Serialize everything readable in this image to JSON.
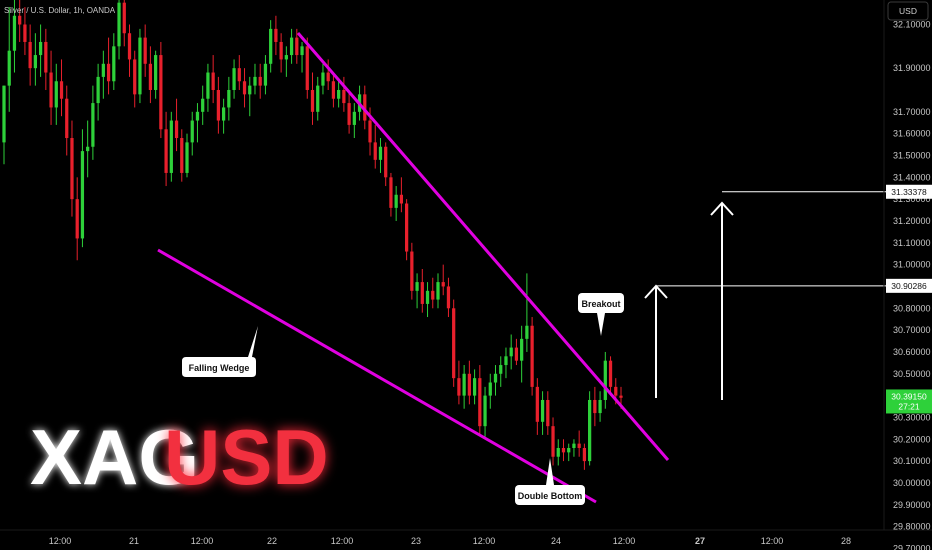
{
  "header": {
    "symbol_info": "Silver / U.S. Dollar, 1h, OANDA",
    "currency": "USD"
  },
  "watermark": {
    "part1": "XAG",
    "part2": "USD",
    "color1": "#ffffff",
    "color2": "#f2303f"
  },
  "colors": {
    "up": "#2ed13a",
    "down": "#e8202c",
    "wedge": "#e000e0",
    "axis_text": "#c8c8c8",
    "arrow": "#ffffff"
  },
  "chart_data": {
    "type": "candlestick",
    "yaxis": {
      "ticks": [
        "29.70000",
        "29.80000",
        "29.90000",
        "30.00000",
        "30.10000",
        "30.20000",
        "30.30000",
        "30.40000",
        "30.50000",
        "30.60000",
        "30.70000",
        "30.80000",
        "30.90000",
        "31.00000",
        "31.10000",
        "31.20000",
        "31.30000",
        "31.40000",
        "31.50000",
        "31.60000",
        "31.70000",
        "31.90000",
        "32.10000"
      ],
      "range": [
        29.66,
        32.32
      ]
    },
    "xaxis": {
      "ticks": [
        "12:00",
        "21",
        "12:00",
        "22",
        "12:00",
        "23",
        "12:00",
        "24",
        "12:00",
        "27",
        "12:00",
        "28"
      ]
    },
    "candles": [
      [
        31.56,
        31.82,
        31.46,
        31.82
      ],
      [
        31.82,
        32.18,
        31.7,
        31.98
      ],
      [
        31.98,
        32.22,
        31.88,
        32.14
      ],
      [
        32.14,
        32.28,
        32.02,
        32.1
      ],
      [
        32.1,
        32.18,
        31.96,
        32.02
      ],
      [
        32.02,
        32.1,
        31.82,
        31.9
      ],
      [
        31.9,
        32.06,
        31.82,
        31.96
      ],
      [
        31.96,
        32.1,
        31.86,
        32.02
      ],
      [
        32.02,
        32.08,
        31.8,
        31.88
      ],
      [
        31.88,
        31.98,
        31.64,
        31.72
      ],
      [
        31.72,
        31.92,
        31.64,
        31.84
      ],
      [
        31.84,
        31.94,
        31.68,
        31.76
      ],
      [
        31.76,
        31.82,
        31.5,
        31.58
      ],
      [
        31.58,
        31.66,
        31.22,
        31.3
      ],
      [
        31.3,
        31.4,
        31.02,
        31.12
      ],
      [
        31.12,
        31.62,
        31.08,
        31.52
      ],
      [
        31.52,
        31.66,
        31.4,
        31.54
      ],
      [
        31.54,
        31.82,
        31.48,
        31.74
      ],
      [
        31.74,
        31.92,
        31.66,
        31.86
      ],
      [
        31.86,
        31.98,
        31.76,
        31.92
      ],
      [
        31.92,
        32.04,
        31.78,
        31.84
      ],
      [
        31.84,
        32.06,
        31.8,
        32.0
      ],
      [
        32.0,
        32.24,
        31.94,
        32.2
      ],
      [
        32.2,
        32.28,
        32.0,
        32.06
      ],
      [
        32.06,
        32.1,
        31.86,
        31.94
      ],
      [
        31.94,
        31.98,
        31.72,
        31.78
      ],
      [
        31.78,
        32.08,
        31.74,
        32.04
      ],
      [
        32.04,
        32.1,
        31.86,
        31.92
      ],
      [
        31.92,
        32.0,
        31.74,
        31.8
      ],
      [
        31.8,
        31.98,
        31.76,
        31.96
      ],
      [
        31.96,
        32.02,
        31.58,
        31.62
      ],
      [
        31.62,
        31.7,
        31.36,
        31.42
      ],
      [
        31.42,
        31.7,
        31.38,
        31.66
      ],
      [
        31.66,
        31.76,
        31.52,
        31.58
      ],
      [
        31.58,
        31.62,
        31.38,
        31.42
      ],
      [
        31.42,
        31.6,
        31.4,
        31.56
      ],
      [
        31.56,
        31.7,
        31.5,
        31.66
      ],
      [
        31.66,
        31.74,
        31.56,
        31.7
      ],
      [
        31.7,
        31.82,
        31.64,
        31.76
      ],
      [
        31.76,
        31.92,
        31.7,
        31.88
      ],
      [
        31.88,
        31.96,
        31.74,
        31.8
      ],
      [
        31.8,
        31.86,
        31.6,
        31.66
      ],
      [
        31.66,
        31.76,
        31.6,
        31.72
      ],
      [
        31.72,
        31.86,
        31.66,
        31.8
      ],
      [
        31.8,
        31.94,
        31.76,
        31.9
      ],
      [
        31.9,
        31.96,
        31.8,
        31.84
      ],
      [
        31.84,
        31.9,
        31.72,
        31.78
      ],
      [
        31.78,
        31.86,
        31.68,
        31.82
      ],
      [
        31.82,
        31.92,
        31.78,
        31.86
      ],
      [
        31.86,
        31.92,
        31.76,
        31.82
      ],
      [
        31.82,
        31.96,
        31.78,
        31.92
      ],
      [
        31.92,
        32.12,
        31.88,
        32.08
      ],
      [
        32.08,
        32.14,
        31.96,
        32.02
      ],
      [
        32.02,
        32.06,
        31.88,
        31.94
      ],
      [
        31.94,
        32.0,
        31.86,
        31.96
      ],
      [
        31.96,
        32.08,
        31.92,
        32.04
      ],
      [
        32.04,
        32.08,
        31.92,
        31.96
      ],
      [
        31.96,
        32.02,
        31.88,
        32.0
      ],
      [
        32.0,
        32.04,
        31.76,
        31.8
      ],
      [
        31.8,
        31.88,
        31.64,
        31.7
      ],
      [
        31.7,
        31.86,
        31.66,
        31.82
      ],
      [
        31.82,
        31.92,
        31.78,
        31.88
      ],
      [
        31.88,
        31.94,
        31.8,
        31.84
      ],
      [
        31.84,
        31.88,
        31.72,
        31.76
      ],
      [
        31.76,
        31.84,
        31.72,
        31.8
      ],
      [
        31.8,
        31.86,
        31.7,
        31.74
      ],
      [
        31.74,
        31.8,
        31.6,
        31.64
      ],
      [
        31.64,
        31.74,
        31.58,
        31.7
      ],
      [
        31.7,
        31.82,
        31.66,
        31.78
      ],
      [
        31.78,
        31.82,
        31.62,
        31.66
      ],
      [
        31.66,
        31.72,
        31.5,
        31.56
      ],
      [
        31.56,
        31.64,
        31.44,
        31.48
      ],
      [
        31.48,
        31.58,
        31.42,
        31.54
      ],
      [
        31.54,
        31.56,
        31.36,
        31.4
      ],
      [
        31.4,
        31.42,
        31.22,
        31.26
      ],
      [
        31.26,
        31.36,
        31.2,
        31.32
      ],
      [
        31.32,
        31.4,
        31.24,
        31.28
      ],
      [
        31.28,
        31.3,
        31.02,
        31.06
      ],
      [
        31.06,
        31.1,
        30.84,
        30.88
      ],
      [
        30.88,
        30.96,
        30.8,
        30.92
      ],
      [
        30.92,
        30.98,
        30.78,
        30.82
      ],
      [
        30.82,
        30.92,
        30.76,
        30.88
      ],
      [
        30.88,
        30.94,
        30.8,
        30.84
      ],
      [
        30.84,
        30.96,
        30.8,
        30.92
      ],
      [
        30.92,
        31.0,
        30.86,
        30.9
      ],
      [
        30.9,
        30.94,
        30.76,
        30.8
      ],
      [
        30.8,
        30.84,
        30.44,
        30.48
      ],
      [
        30.48,
        30.56,
        30.36,
        30.4
      ],
      [
        30.4,
        30.54,
        30.34,
        30.5
      ],
      [
        30.5,
        30.56,
        30.36,
        30.4
      ],
      [
        30.4,
        30.52,
        30.36,
        30.48
      ],
      [
        30.48,
        30.54,
        30.22,
        30.26
      ],
      [
        30.26,
        30.44,
        30.2,
        30.4
      ],
      [
        30.4,
        30.5,
        30.34,
        30.46
      ],
      [
        30.46,
        30.54,
        30.4,
        30.5
      ],
      [
        30.5,
        30.58,
        30.44,
        30.54
      ],
      [
        30.54,
        30.62,
        30.48,
        30.58
      ],
      [
        30.58,
        30.68,
        30.52,
        30.62
      ],
      [
        30.62,
        30.66,
        30.54,
        30.56
      ],
      [
        30.56,
        30.72,
        30.46,
        30.66
      ],
      [
        30.66,
        30.96,
        30.6,
        30.72
      ],
      [
        30.72,
        30.76,
        30.4,
        30.44
      ],
      [
        30.44,
        30.48,
        30.22,
        30.28
      ],
      [
        30.28,
        30.42,
        30.22,
        30.38
      ],
      [
        30.38,
        30.42,
        30.22,
        30.26
      ],
      [
        30.26,
        30.3,
        30.08,
        30.12
      ],
      [
        30.12,
        30.2,
        30.08,
        30.16
      ],
      [
        30.16,
        30.2,
        30.1,
        30.14
      ],
      [
        30.14,
        30.18,
        30.1,
        30.16
      ],
      [
        30.16,
        30.2,
        30.12,
        30.18
      ],
      [
        30.18,
        30.24,
        30.12,
        30.16
      ],
      [
        30.16,
        30.18,
        30.06,
        30.1
      ],
      [
        30.1,
        30.42,
        30.08,
        30.38
      ],
      [
        30.38,
        30.44,
        30.26,
        30.32
      ],
      [
        30.32,
        30.42,
        30.28,
        30.38
      ],
      [
        30.38,
        30.6,
        30.34,
        30.56
      ],
      [
        30.56,
        30.58,
        30.4,
        30.44
      ],
      [
        30.44,
        30.48,
        30.36,
        30.4
      ],
      [
        30.4,
        30.44,
        30.34,
        30.39
      ]
    ],
    "annotations": [
      {
        "text": "Falling Wedge"
      },
      {
        "text": "Breakout"
      },
      {
        "text": "Double Bottom"
      }
    ],
    "targets": [
      {
        "label": "31.33378",
        "value": 31.33378
      },
      {
        "label": "30.90286",
        "value": 30.90286
      }
    ],
    "current_price": {
      "label": "30.39150",
      "timer": "27:21",
      "value": 30.3915
    },
    "wedge_lines": [
      {
        "from": [
          31.09,
          21.2
        ],
        "to": [
          29.79,
          24.3
        ]
      },
      {
        "from": [
          32.22,
          22.2
        ],
        "to": [
          29.99,
          25.0
        ]
      }
    ]
  }
}
